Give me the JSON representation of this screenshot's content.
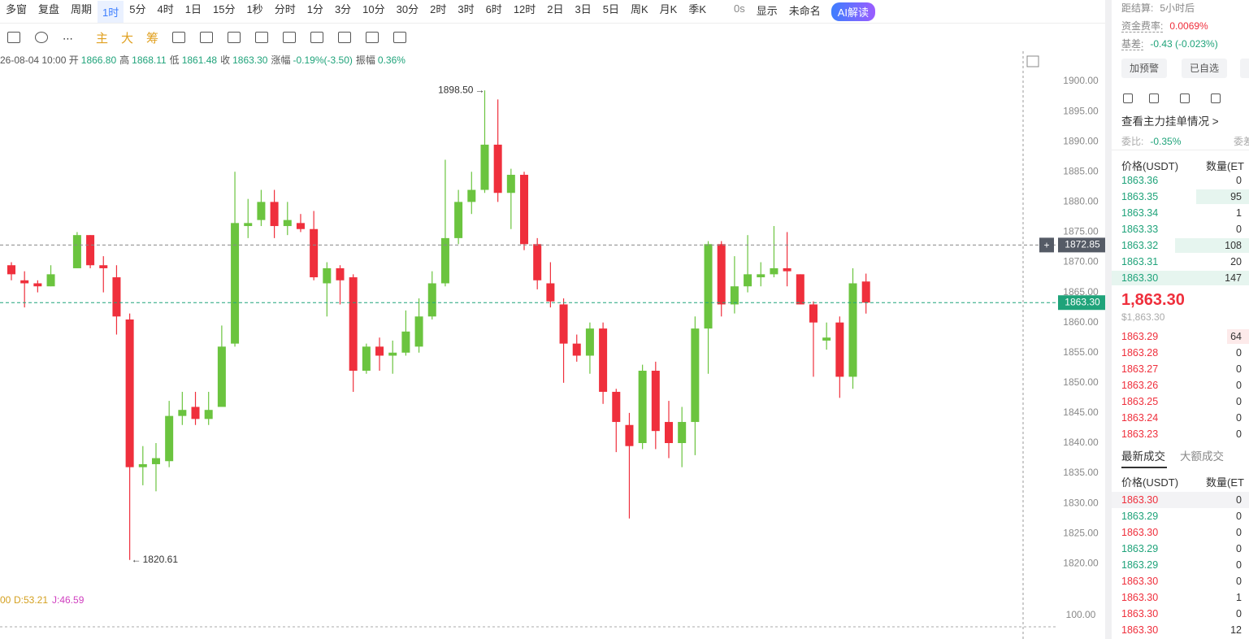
{
  "toolbar": {
    "items": [
      "多窗",
      "复盘",
      "周期",
      "1时",
      "5分",
      "4时",
      "1日",
      "15分",
      "1秒",
      "分时",
      "1分",
      "3分",
      "10分",
      "30分",
      "2时",
      "3时",
      "6时",
      "12时",
      "2日",
      "3日",
      "5日",
      "周K",
      "月K",
      "季K"
    ],
    "tools": [
      "0s",
      "显示",
      "未命名",
      "AI解读"
    ]
  },
  "toolbar2": {
    "items": [
      "主",
      "大",
      "筹"
    ]
  },
  "info": {
    "time": "26-08-04 10:00",
    "items": [
      {
        "label": "开",
        "value": "1866.80"
      },
      {
        "label": "高",
        "value": "1868.11"
      },
      {
        "label": "低",
        "value": "1861.48"
      },
      {
        "label": "收",
        "value": "1863.30"
      },
      {
        "label": "涨幅",
        "value": "-0.19%(-3.50)"
      },
      {
        "label": "振幅",
        "value": "0.36%"
      }
    ]
  },
  "chart": {
    "type": "candlestick",
    "up_color": "#6bc43f",
    "down_color": "#ef2f3c",
    "ylim": [
      1816.4,
      1905
    ],
    "yticks": [
      {
        "value": 1820,
        "label": "1820.00"
      },
      {
        "value": 1825,
        "label": "1825.00"
      },
      {
        "value": 1830,
        "label": "1830.00"
      },
      {
        "value": 1835,
        "label": "1835.00"
      },
      {
        "value": 1840,
        "label": "1840.00"
      },
      {
        "value": 1845,
        "label": "1845.00"
      },
      {
        "value": 1850,
        "label": "1850.00"
      },
      {
        "value": 1855,
        "label": "1855.00"
      },
      {
        "value": 1860,
        "label": "1860.00"
      },
      {
        "value": 1865,
        "label": "1865.00"
      },
      {
        "value": 1870,
        "label": "1870.00"
      },
      {
        "value": 1875,
        "label": "1875.00"
      },
      {
        "value": 1880,
        "label": "1880.00"
      },
      {
        "value": 1885,
        "label": "1885.00"
      },
      {
        "value": 1890,
        "label": "1890.00"
      },
      {
        "value": 1895,
        "label": "1895.00"
      },
      {
        "value": 1900,
        "label": "1900.00"
      }
    ],
    "candles": [
      {
        "o": 1869.5,
        "h": 1870,
        "l": 1867,
        "c": 1868
      },
      {
        "o": 1867,
        "h": 1868.5,
        "l": 1862.5,
        "c": 1866.5
      },
      {
        "o": 1866.5,
        "h": 1867,
        "l": 1865,
        "c": 1866
      },
      {
        "o": 1866,
        "h": 1869.5,
        "l": 1866,
        "c": 1868
      },
      null,
      {
        "o": 1869,
        "h": 1875,
        "l": 1869,
        "c": 1874.5
      },
      {
        "o": 1874.5,
        "h": 1874.5,
        "l": 1869,
        "c": 1869.5
      },
      {
        "o": 1869.5,
        "h": 1871,
        "l": 1865,
        "c": 1869
      },
      {
        "o": 1867.5,
        "h": 1869.5,
        "l": 1858,
        "c": 1861
      },
      {
        "o": 1860.5,
        "h": 1861.5,
        "l": 1820.61,
        "c": 1836
      },
      {
        "o": 1836,
        "h": 1839.5,
        "l": 1833,
        "c": 1836.5
      },
      {
        "o": 1836.5,
        "h": 1840,
        "l": 1832,
        "c": 1837.5
      },
      {
        "o": 1837,
        "h": 1847,
        "l": 1836,
        "c": 1844.5
      },
      {
        "o": 1844.5,
        "h": 1848.5,
        "l": 1843,
        "c": 1845.5
      },
      {
        "o": 1846,
        "h": 1848.5,
        "l": 1843,
        "c": 1844
      },
      {
        "o": 1844,
        "h": 1848.5,
        "l": 1843,
        "c": 1845.5
      },
      {
        "o": 1846,
        "h": 1859.5,
        "l": 1846,
        "c": 1856
      },
      {
        "o": 1856.5,
        "h": 1885,
        "l": 1856,
        "c": 1876.5
      },
      {
        "o": 1876,
        "h": 1880.5,
        "l": 1874,
        "c": 1876.5
      },
      {
        "o": 1877,
        "h": 1882,
        "l": 1876,
        "c": 1880
      },
      {
        "o": 1880,
        "h": 1882,
        "l": 1874,
        "c": 1876
      },
      {
        "o": 1876,
        "h": 1880,
        "l": 1874.5,
        "c": 1877
      },
      {
        "o": 1876.5,
        "h": 1878,
        "l": 1875,
        "c": 1875.5
      },
      {
        "o": 1875.5,
        "h": 1878.5,
        "l": 1867,
        "c": 1867.5
      },
      {
        "o": 1866.5,
        "h": 1870,
        "l": 1861,
        "c": 1869
      },
      {
        "o": 1869,
        "h": 1869.5,
        "l": 1863,
        "c": 1867
      },
      {
        "o": 1867.5,
        "h": 1868,
        "l": 1848.5,
        "c": 1852
      },
      {
        "o": 1852,
        "h": 1856.5,
        "l": 1851.5,
        "c": 1856
      },
      {
        "o": 1856,
        "h": 1857.5,
        "l": 1852,
        "c": 1854.5
      },
      {
        "o": 1854.5,
        "h": 1857,
        "l": 1851.5,
        "c": 1855
      },
      {
        "o": 1855,
        "h": 1862,
        "l": 1854.5,
        "c": 1858.5
      },
      {
        "o": 1856,
        "h": 1864,
        "l": 1855,
        "c": 1861
      },
      {
        "o": 1861,
        "h": 1868.5,
        "l": 1860.5,
        "c": 1866.5
      },
      {
        "o": 1866.5,
        "h": 1887,
        "l": 1866,
        "c": 1874
      },
      {
        "o": 1874,
        "h": 1882,
        "l": 1873,
        "c": 1880
      },
      {
        "o": 1880,
        "h": 1885,
        "l": 1878,
        "c": 1882
      },
      {
        "o": 1882,
        "h": 1898.5,
        "l": 1881.5,
        "c": 1889.5
      },
      {
        "o": 1889.5,
        "h": 1897,
        "l": 1880,
        "c": 1881.5
      },
      {
        "o": 1881.5,
        "h": 1885.5,
        "l": 1875.5,
        "c": 1884.5
      },
      {
        "o": 1884.5,
        "h": 1885,
        "l": 1872,
        "c": 1873
      },
      {
        "o": 1873,
        "h": 1874,
        "l": 1865.5,
        "c": 1867
      },
      {
        "o": 1866.5,
        "h": 1870,
        "l": 1862.5,
        "c": 1863.5
      },
      {
        "o": 1863,
        "h": 1864,
        "l": 1850,
        "c": 1856.5
      },
      {
        "o": 1856.5,
        "h": 1858,
        "l": 1853.5,
        "c": 1854.5
      },
      {
        "o": 1854.5,
        "h": 1860,
        "l": 1851.5,
        "c": 1859
      },
      {
        "o": 1859,
        "h": 1860,
        "l": 1846.5,
        "c": 1848.5
      },
      {
        "o": 1848.5,
        "h": 1849,
        "l": 1838.5,
        "c": 1843.5
      },
      {
        "o": 1843,
        "h": 1845,
        "l": 1827.5,
        "c": 1839.5
      },
      {
        "o": 1840,
        "h": 1853,
        "l": 1839,
        "c": 1852
      },
      {
        "o": 1852,
        "h": 1853.5,
        "l": 1839,
        "c": 1842
      },
      {
        "o": 1843.5,
        "h": 1847,
        "l": 1837.5,
        "c": 1840
      },
      {
        "o": 1840,
        "h": 1846,
        "l": 1836,
        "c": 1843.5
      },
      {
        "o": 1843.5,
        "h": 1861,
        "l": 1838,
        "c": 1859
      },
      {
        "o": 1859,
        "h": 1873.5,
        "l": 1851.5,
        "c": 1873
      },
      {
        "o": 1873,
        "h": 1873.5,
        "l": 1861,
        "c": 1863
      },
      {
        "o": 1863,
        "h": 1871,
        "l": 1861.5,
        "c": 1866
      },
      {
        "o": 1866,
        "h": 1874.5,
        "l": 1865,
        "c": 1868
      },
      {
        "o": 1867.5,
        "h": 1870,
        "l": 1866,
        "c": 1868
      },
      {
        "o": 1868,
        "h": 1876,
        "l": 1867.5,
        "c": 1869
      },
      {
        "o": 1869,
        "h": 1875,
        "l": 1866,
        "c": 1868.5
      },
      {
        "o": 1868,
        "h": 1868,
        "l": 1863,
        "c": 1863
      },
      {
        "o": 1863,
        "h": 1863.5,
        "l": 1851,
        "c": 1860
      },
      {
        "o": 1857,
        "h": 1860,
        "l": 1855.5,
        "c": 1857.5
      },
      {
        "o": 1860,
        "h": 1861,
        "l": 1847.5,
        "c": 1851
      },
      {
        "o": 1851,
        "h": 1869,
        "l": 1849,
        "c": 1866.5
      },
      {
        "o": 1866.8,
        "h": 1868.11,
        "l": 1861.48,
        "c": 1863.3
      }
    ],
    "annotations": {
      "high": "1898.50",
      "low": "1820.61"
    },
    "crosshair": {
      "value": 1872.85,
      "label": "1872.85"
    },
    "last": {
      "value": 1863.3,
      "label": "1863.30"
    },
    "indicator": {
      "labels": [
        "00",
        "D:53.21",
        "J:46.59"
      ],
      "tick": "100.00"
    }
  },
  "panel": {
    "settle": {
      "label": "距结算:",
      "value": "5小时后"
    },
    "funding": {
      "label": "资金费率:",
      "value": "0.0069%"
    },
    "basis": {
      "label": "基差:",
      "value": "-0.43 (-0.023%)"
    },
    "buttons": [
      "加预警",
      "已自选"
    ],
    "depth_link": "查看主力挂单情况 >",
    "ratio": {
      "label": "委比:",
      "value": "-0.35%",
      "other": "委差"
    },
    "book_header": [
      "价格(USDT)",
      "数量(ET"
    ],
    "asks": [
      [
        "1863.36",
        "0"
      ],
      [
        "1863.35",
        "95"
      ],
      [
        "1863.34",
        "1"
      ],
      [
        "1863.33",
        "0"
      ],
      [
        "1863.32",
        "108"
      ],
      [
        "1863.31",
        "20"
      ],
      [
        "1863.30",
        "147"
      ]
    ],
    "last_price": "1,863.30",
    "last_usd": "$1,863.30",
    "bids": [
      [
        "1863.29",
        "64"
      ],
      [
        "1863.28",
        "0"
      ],
      [
        "1863.27",
        "0"
      ],
      [
        "1863.26",
        "0"
      ],
      [
        "1863.25",
        "0"
      ],
      [
        "1863.24",
        "0"
      ],
      [
        "1863.23",
        "0"
      ]
    ],
    "tabs": [
      "最新成交",
      "大额成交"
    ],
    "trades_header": [
      "价格(USDT)",
      "数量(ET"
    ],
    "trades": [
      {
        "price": "1863.30",
        "qty": "0",
        "color": "#ef2f3c"
      },
      {
        "price": "1863.29",
        "qty": "0",
        "color": "#1fa37a"
      },
      {
        "price": "1863.30",
        "qty": "0",
        "color": "#ef2f3c"
      },
      {
        "price": "1863.29",
        "qty": "0",
        "color": "#1fa37a"
      },
      {
        "price": "1863.29",
        "qty": "0",
        "color": "#1fa37a"
      },
      {
        "price": "1863.30",
        "qty": "0",
        "color": "#ef2f3c"
      },
      {
        "price": "1863.30",
        "qty": "1",
        "color": "#ef2f3c"
      },
      {
        "price": "1863.30",
        "qty": "0",
        "color": "#ef2f3c"
      },
      {
        "price": "1863.30",
        "qty": "12",
        "color": "#ef2f3c"
      }
    ]
  }
}
